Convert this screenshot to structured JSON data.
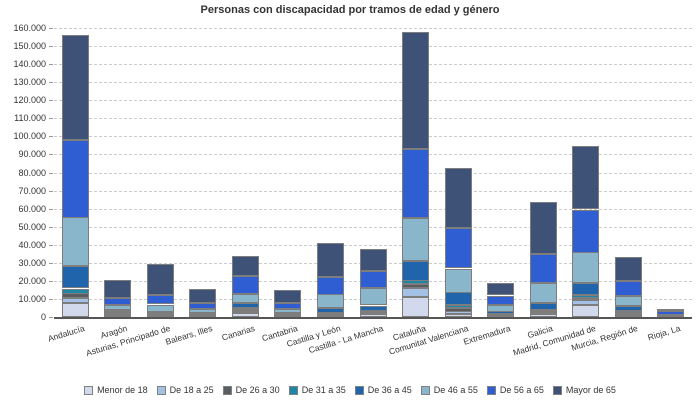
{
  "chart_data": {
    "type": "bar",
    "subtype": "stacked-vertical",
    "title": "Personas con discapacidad por tramos de edad y género",
    "xlabel": "",
    "ylabel": "",
    "ylim": [
      0,
      160000
    ],
    "ytick_step": 10000,
    "ytick_labels": [
      "0",
      "10.000",
      "20.000",
      "30.000",
      "40.000",
      "50.000",
      "60.000",
      "70.000",
      "80.000",
      "90.000",
      "100.000",
      "110.000",
      "120.000",
      "130.000",
      "140.000",
      "150.000",
      "160.000"
    ],
    "grid": "horizontal-dashed",
    "legend_position": "bottom",
    "categories": [
      "Andalucía",
      "Aragón",
      "Asturias, Principado de",
      "Balears, Illes",
      "Canarias",
      "Cantabria",
      "Castilla y León",
      "Castilla - La Mancha",
      "Cataluña",
      "Comunitat Valenciana",
      "Extremadura",
      "Galicia",
      "Madrid, Comunidad de",
      "Murcia, Región de",
      "Rioja, La"
    ],
    "series": [
      {
        "name": "Menor de 18",
        "color": "#d3d9ec",
        "values": [
          8000,
          1000,
          800,
          700,
          2000,
          500,
          700,
          1500,
          11000,
          1500,
          300,
          1400,
          6500,
          1300,
          150
        ]
      },
      {
        "name": "De 18 a 25",
        "color": "#a4c0e4",
        "values": [
          2500,
          500,
          400,
          300,
          1000,
          300,
          400,
          600,
          5000,
          1500,
          300,
          800,
          2800,
          900,
          100
        ]
      },
      {
        "name": "De 26 a 30",
        "color": "#595c61",
        "values": [
          2500,
          500,
          400,
          300,
          1000,
          300,
          500,
          700,
          2000,
          2000,
          400,
          800,
          1300,
          700,
          100
        ]
      },
      {
        "name": "De 31 a 35",
        "color": "#1d85a5",
        "values": [
          3000,
          500,
          400,
          300,
          1100,
          300,
          400,
          700,
          2000,
          1500,
          400,
          800,
          1500,
          600,
          150
        ]
      },
      {
        "name": "De 36 a 45",
        "color": "#2065ab",
        "values": [
          12000,
          1100,
          900,
          700,
          2600,
          900,
          2900,
          3000,
          11000,
          7000,
          1400,
          4100,
          6500,
          2500,
          300
        ]
      },
      {
        "name": "De 46 a 55",
        "color": "#8ab6cb",
        "values": [
          27000,
          2900,
          4100,
          2200,
          5000,
          2400,
          7500,
          9500,
          24000,
          13500,
          4000,
          11000,
          17000,
          5500,
          400
        ]
      },
      {
        "name": "De 56 a 65",
        "color": "#2e5ed2",
        "values": [
          43000,
          4100,
          5000,
          3500,
          10000,
          3300,
          10000,
          9500,
          38000,
          22000,
          5200,
          16000,
          24000,
          8500,
          2200
        ]
      },
      {
        "name": "Mayor de 65",
        "color": "#3e5277",
        "values": [
          58000,
          9900,
          17000,
          7500,
          11000,
          7000,
          19000,
          12000,
          65000,
          33000,
          6500,
          29000,
          35000,
          13500,
          1200
        ]
      }
    ]
  }
}
